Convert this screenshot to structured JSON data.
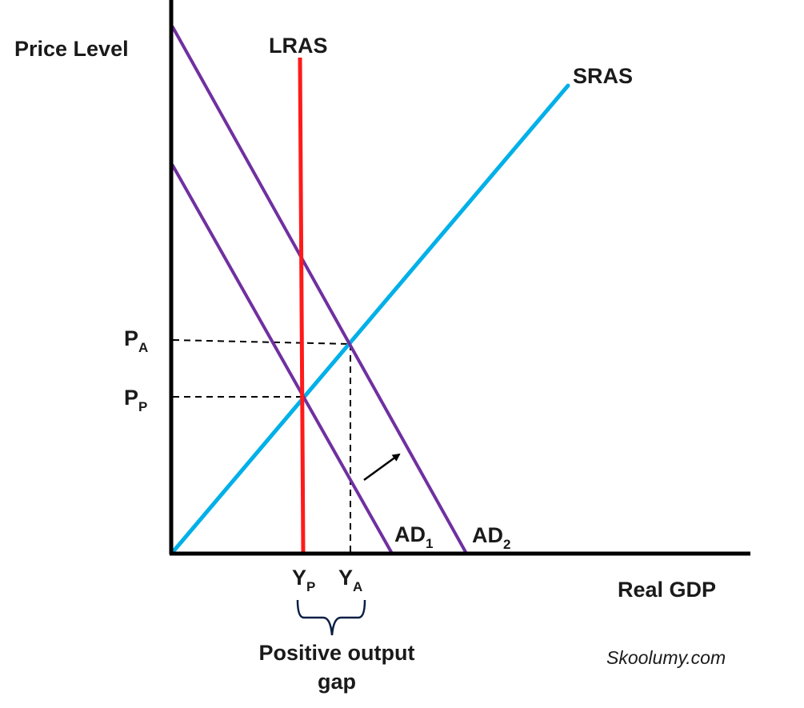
{
  "axes": {
    "y_title": "Price Level",
    "x_title": "Real GDP"
  },
  "curves": {
    "lras": {
      "label": "LRAS",
      "color": "#ff1a1a"
    },
    "sras": {
      "label": "SRAS",
      "color": "#00b0e8"
    },
    "ad1": {
      "label": "AD",
      "subscript": "1",
      "color": "#7030a0"
    },
    "ad2": {
      "label": "AD",
      "subscript": "2",
      "color": "#7030a0"
    }
  },
  "y_ticks": [
    {
      "main": "P",
      "sub": "A"
    },
    {
      "main": "P",
      "sub": "P"
    }
  ],
  "x_ticks": [
    {
      "main": "Y",
      "sub": "P"
    },
    {
      "main": "Y",
      "sub": "A"
    }
  ],
  "gap_label": {
    "line1": "Positive output",
    "line2": "gap"
  },
  "shift_arrow": {
    "icon": "arrow-up-right-icon"
  },
  "credit": "Skoolumy.com"
}
